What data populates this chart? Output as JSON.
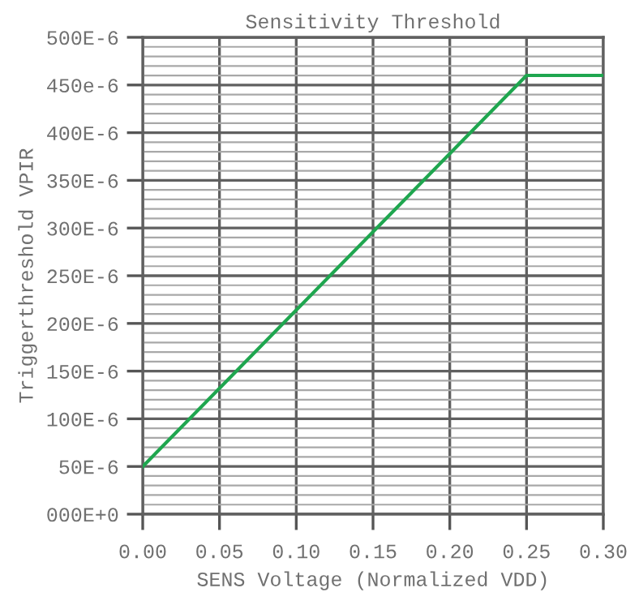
{
  "chart_data": {
    "type": "line",
    "title": "Sensitivity Threshold",
    "xlabel": "SENS Voltage (Normalized VDD)",
    "ylabel": "Triggerthreshold VPIR",
    "x": [
      0,
      0.25,
      0.3
    ],
    "series": [
      {
        "color": "#1fa64f",
        "values": [
          5e-05,
          0.00046,
          0.00046
        ]
      }
    ],
    "xlim": [
      0,
      0.3
    ],
    "xticks": [
      {
        "value": 0,
        "label": "0.00"
      },
      {
        "value": 0.05,
        "label": "0.05"
      },
      {
        "value": 0.1,
        "label": "0.10"
      },
      {
        "value": 0.15,
        "label": "0.15"
      },
      {
        "value": 0.2,
        "label": "0.20"
      },
      {
        "value": 0.25,
        "label": "0.25"
      },
      {
        "value": 0.3,
        "label": "0.30"
      }
    ],
    "ylim": [
      0,
      0.0005
    ],
    "yticks": [
      {
        "value": 0,
        "label": "000E+0"
      },
      {
        "value": 1e-05,
        "label": null
      },
      {
        "value": 2e-05,
        "label": null
      },
      {
        "value": 3e-05,
        "label": null
      },
      {
        "value": 4e-05,
        "label": null
      },
      {
        "value": 5e-05,
        "label": "50E-6"
      },
      {
        "value": 6e-05,
        "label": null
      },
      {
        "value": 7e-05,
        "label": null
      },
      {
        "value": 8e-05,
        "label": null
      },
      {
        "value": 9e-05,
        "label": null
      },
      {
        "value": 0.0001,
        "label": "100E-6"
      },
      {
        "value": 0.00011,
        "label": null
      },
      {
        "value": 0.00012,
        "label": null
      },
      {
        "value": 0.00013,
        "label": null
      },
      {
        "value": 0.00014,
        "label": null
      },
      {
        "value": 0.00015,
        "label": "150E-6"
      },
      {
        "value": 0.00016,
        "label": null
      },
      {
        "value": 0.00017,
        "label": null
      },
      {
        "value": 0.00018,
        "label": null
      },
      {
        "value": 0.00019,
        "label": null
      },
      {
        "value": 0.0002,
        "label": "200E-6"
      },
      {
        "value": 0.00021,
        "label": null
      },
      {
        "value": 0.00022,
        "label": null
      },
      {
        "value": 0.00023,
        "label": null
      },
      {
        "value": 0.00024,
        "label": null
      },
      {
        "value": 0.00025,
        "label": "250E-6"
      },
      {
        "value": 0.00026,
        "label": null
      },
      {
        "value": 0.00027,
        "label": null
      },
      {
        "value": 0.00028,
        "label": null
      },
      {
        "value": 0.00029,
        "label": null
      },
      {
        "value": 0.0003,
        "label": "300E-6"
      },
      {
        "value": 0.00031,
        "label": null
      },
      {
        "value": 0.00032,
        "label": null
      },
      {
        "value": 0.00033,
        "label": null
      },
      {
        "value": 0.00034,
        "label": null
      },
      {
        "value": 0.00035,
        "label": "350E-6"
      },
      {
        "value": 0.00036,
        "label": null
      },
      {
        "value": 0.00037,
        "label": null
      },
      {
        "value": 0.00038,
        "label": null
      },
      {
        "value": 0.00039,
        "label": null
      },
      {
        "value": 0.0004,
        "label": "400E-6"
      },
      {
        "value": 0.00041,
        "label": null
      },
      {
        "value": 0.00042,
        "label": null
      },
      {
        "value": 0.00043,
        "label": null
      },
      {
        "value": 0.00044,
        "label": null
      },
      {
        "value": 0.00045,
        "label": "450e-6"
      },
      {
        "value": 0.00046,
        "label": null
      },
      {
        "value": 0.00047,
        "label": null
      },
      {
        "value": 0.00048,
        "label": null
      },
      {
        "value": 0.00049,
        "label": null
      },
      {
        "value": 0.0005,
        "label": "500E-6"
      }
    ],
    "grid": true,
    "marker": "none",
    "line_style": "solid"
  }
}
